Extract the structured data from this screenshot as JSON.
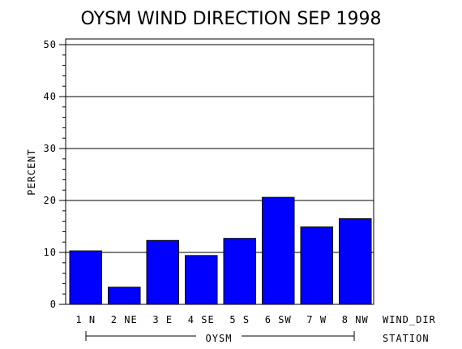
{
  "chart_data": {
    "type": "bar",
    "title": "OYSM WIND DIRECTION SEP 1998",
    "ylabel": "PERCENT",
    "xlabel": "WIND_DIR",
    "group_label": "STATION",
    "group_name": "OYSM",
    "categories": [
      "1 N",
      "2 NE",
      "3 E",
      "4 SE",
      "5 S",
      "6 SW",
      "7 W",
      "8 NW"
    ],
    "values": [
      10.3,
      3.3,
      12.3,
      9.4,
      12.7,
      20.6,
      14.9,
      16.5
    ],
    "ylim": [
      0,
      50
    ],
    "yticks": [
      "0",
      "10",
      "20",
      "30",
      "40",
      "50"
    ],
    "grid": true,
    "bar_color": "#0000ff"
  }
}
